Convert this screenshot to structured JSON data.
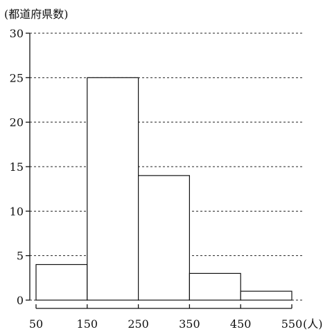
{
  "chart_data": {
    "type": "bar",
    "bins": [
      {
        "from": 50,
        "to": 150,
        "value": 4
      },
      {
        "from": 150,
        "to": 250,
        "value": 25
      },
      {
        "from": 250,
        "to": 350,
        "value": 14
      },
      {
        "from": 350,
        "to": 450,
        "value": 3
      },
      {
        "from": 450,
        "to": 550,
        "value": 1
      }
    ],
    "x_ticks": [
      "50",
      "150",
      "250",
      "350",
      "450",
      "550"
    ],
    "x_tick_values": [
      50,
      150,
      250,
      350,
      450,
      550
    ],
    "y_ticks": [
      "0",
      "5",
      "10",
      "15",
      "20",
      "25",
      "30"
    ],
    "y_tick_values": [
      0,
      5,
      10,
      15,
      20,
      25,
      30
    ],
    "xlim": [
      50,
      550
    ],
    "ylim": [
      0,
      30
    ],
    "xlabel": "(人)",
    "ylabel": "(都道府県数)",
    "grid": true
  }
}
